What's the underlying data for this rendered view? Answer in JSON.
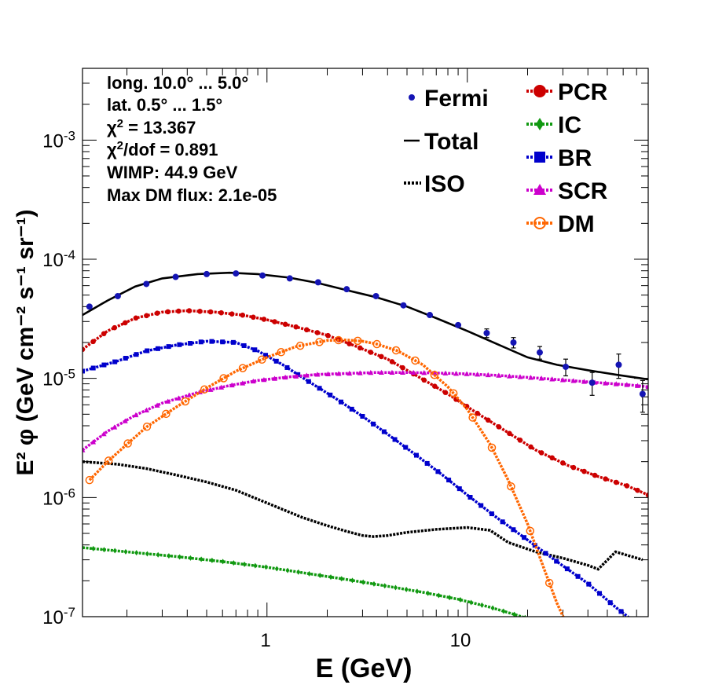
{
  "chart_data": {
    "type": "line",
    "xlabel": "E (GeV)",
    "ylabel": "E² φ (GeV cm⁻² s⁻¹ sr⁻¹)",
    "xscale": "log",
    "yscale": "log",
    "xlim": [
      0.12,
      80
    ],
    "ylim": [
      1e-07,
      0.004
    ],
    "x_tick_labels": [
      "1",
      "10"
    ],
    "y_tick_labels": [
      "10-7",
      "10-6",
      "10-5",
      "10-4",
      "10-3"
    ],
    "info_lines": [
      "long. 10.0° ... 5.0°",
      "lat. 0.5° ... 1.5°",
      "χ2 = 13.367",
      "χ2/dof = 0.891",
      "WIMP: 44.9 GeV",
      "Max DM flux: 2.1e-05"
    ],
    "legend_position": "top-right",
    "legend_left": [
      "Fermi",
      "Total",
      "ISO"
    ],
    "legend_right": [
      "PCR",
      "IC",
      "BR",
      "SCR",
      "DM"
    ],
    "colors": {
      "Fermi": "#1414b4",
      "Total": "#000000",
      "ISO": "#000000",
      "PCR": "#cc0000",
      "IC": "#119911",
      "BR": "#0000cc",
      "SCR": "#cc00cc",
      "DM": "#ff6600"
    },
    "fermi": {
      "x": [
        0.13,
        0.18,
        0.25,
        0.35,
        0.5,
        0.7,
        0.95,
        1.3,
        1.8,
        2.5,
        3.5,
        4.8,
        6.5,
        9,
        12.5,
        17,
        23,
        31,
        42,
        57,
        75
      ],
      "y": [
        4e-05,
        4.9e-05,
        6.2e-05,
        7.1e-05,
        7.5e-05,
        7.6e-05,
        7.3e-05,
        6.9e-05,
        6.4e-05,
        5.6e-05,
        4.9e-05,
        4.1e-05,
        3.4e-05,
        2.8e-05,
        2.4e-05,
        2e-05,
        1.65e-05,
        1.25e-05,
        9.2e-06,
        1.3e-05,
        7.4e-06
      ],
      "err_low": [
        0,
        0,
        0,
        0,
        0,
        0,
        0,
        0,
        0,
        0,
        0,
        0,
        0,
        0,
        2e-06,
        2e-06,
        2e-06,
        2e-06,
        2e-06,
        3e-06,
        2.2e-06
      ],
      "err_high": [
        0,
        0,
        0,
        0,
        0,
        0,
        0,
        0,
        0,
        0,
        0,
        0,
        0,
        0,
        2e-06,
        2e-06,
        2e-06,
        2e-06,
        2e-06,
        3e-06,
        2.2e-06
      ]
    },
    "series": [
      {
        "name": "Total",
        "style": "solid",
        "marker": "none",
        "x": [
          0.12,
          0.16,
          0.22,
          0.3,
          0.45,
          0.65,
          0.9,
          1.3,
          1.8,
          2.5,
          3.5,
          5,
          7,
          10,
          14,
          20,
          28,
          40,
          56,
          80
        ],
        "y": [
          3.4e-05,
          4.5e-05,
          5.9e-05,
          6.9e-05,
          7.5e-05,
          7.7e-05,
          7.5e-05,
          7e-05,
          6.3e-05,
          5.5e-05,
          4.8e-05,
          4e-05,
          3.2e-05,
          2.5e-05,
          1.95e-05,
          1.5e-05,
          1.3e-05,
          1.17e-05,
          1.07e-05,
          9.8e-06
        ]
      },
      {
        "name": "ISO",
        "style": "dotted",
        "marker": "none",
        "x": [
          0.12,
          0.18,
          0.25,
          0.35,
          0.5,
          0.7,
          1,
          1.5,
          2,
          2.5,
          3,
          3.4,
          4,
          5,
          7,
          10,
          13,
          16,
          22,
          30,
          40,
          45,
          55,
          75
        ],
        "y": [
          2e-06,
          1.9e-06,
          1.75e-06,
          1.55e-06,
          1.35e-06,
          1.15e-06,
          9e-07,
          6.8e-07,
          5.8e-07,
          5.2e-07,
          4.8e-07,
          4.7e-07,
          4.8e-07,
          5.1e-07,
          5.4e-07,
          5.6e-07,
          5.3e-07,
          4.2e-07,
          3.5e-07,
          3.1e-07,
          2.7e-07,
          2.5e-07,
          3.5e-07,
          3e-07
        ]
      },
      {
        "name": "PCR",
        "style": "dotted",
        "marker": "circle",
        "x": [
          0.12,
          0.16,
          0.22,
          0.3,
          0.4,
          0.55,
          0.75,
          1,
          1.4,
          2,
          2.8,
          4,
          5.6,
          8,
          11,
          16,
          22,
          32,
          45,
          63,
          80
        ],
        "y": [
          1.75e-05,
          2.5e-05,
          3.2e-05,
          3.6e-05,
          3.7e-05,
          3.6e-05,
          3.4e-05,
          3.1e-05,
          2.7e-05,
          2.3e-05,
          1.85e-05,
          1.45e-05,
          1.05e-05,
          7.4e-06,
          5.2e-06,
          3.5e-06,
          2.5e-06,
          1.85e-06,
          1.5e-06,
          1.25e-06,
          1.05e-06
        ]
      },
      {
        "name": "IC",
        "style": "dotted",
        "marker": "diamond",
        "x": [
          0.12,
          0.2,
          0.35,
          0.6,
          1,
          1.6,
          2.5,
          4,
          6,
          9,
          13,
          18,
          22
        ],
        "y": [
          3.8e-07,
          3.5e-07,
          3.2e-07,
          2.9e-07,
          2.6e-07,
          2.3e-07,
          2.05e-07,
          1.8e-07,
          1.6e-07,
          1.4e-07,
          1.2e-07,
          1.02e-07,
          9.2e-08
        ]
      },
      {
        "name": "BR",
        "style": "dotted",
        "marker": "square",
        "x": [
          0.12,
          0.18,
          0.25,
          0.35,
          0.5,
          0.7,
          0.9,
          1.2,
          1.6,
          2.2,
          3,
          4,
          5.5,
          7.5,
          10,
          14,
          20,
          28,
          40,
          55,
          75
        ],
        "y": [
          1.15e-05,
          1.4e-05,
          1.7e-05,
          1.9e-05,
          2.05e-05,
          2e-05,
          1.7e-05,
          1.3e-05,
          9.5e-06,
          6.8e-06,
          4.8e-06,
          3.4e-06,
          2.3e-06,
          1.55e-06,
          1.05e-06,
          6.8e-07,
          4.4e-07,
          2.9e-07,
          1.9e-07,
          1.2e-07,
          8e-08
        ]
      },
      {
        "name": "SCR",
        "style": "dotted",
        "marker": "triangle",
        "x": [
          0.12,
          0.16,
          0.22,
          0.3,
          0.45,
          0.65,
          0.9,
          1.3,
          1.8,
          2.5,
          3.5,
          5,
          7,
          10,
          14,
          20,
          30,
          45,
          65,
          80
        ],
        "y": [
          2.5e-06,
          3.6e-06,
          4.9e-06,
          6.2e-06,
          7.6e-06,
          8.7e-06,
          9.6e-06,
          1.03e-05,
          1.08e-05,
          1.1e-05,
          1.12e-05,
          1.12e-05,
          1.11e-05,
          1.09e-05,
          1.06e-05,
          1.02e-05,
          9.7e-06,
          9.2e-06,
          8.8e-06,
          8.5e-06
        ]
      },
      {
        "name": "DM",
        "style": "dotted",
        "marker": "open-circle",
        "x": [
          0.13,
          0.16,
          0.2,
          0.25,
          0.35,
          0.5,
          0.7,
          1,
          1.4,
          2,
          2.5,
          3,
          3.5,
          4.5,
          6,
          8,
          10,
          13,
          16,
          20,
          24,
          28,
          32
        ],
        "y": [
          1.4e-06,
          2e-06,
          2.8e-06,
          3.9e-06,
          5.7e-06,
          8.3e-06,
          1.15e-05,
          1.5e-05,
          1.85e-05,
          2.08e-05,
          2.1e-05,
          2.05e-05,
          1.95e-05,
          1.7e-05,
          1.3e-05,
          8.5e-06,
          5.5e-06,
          2.8e-06,
          1.4e-06,
          6e-07,
          2.6e-07,
          1.3e-07,
          8e-08
        ]
      }
    ]
  }
}
